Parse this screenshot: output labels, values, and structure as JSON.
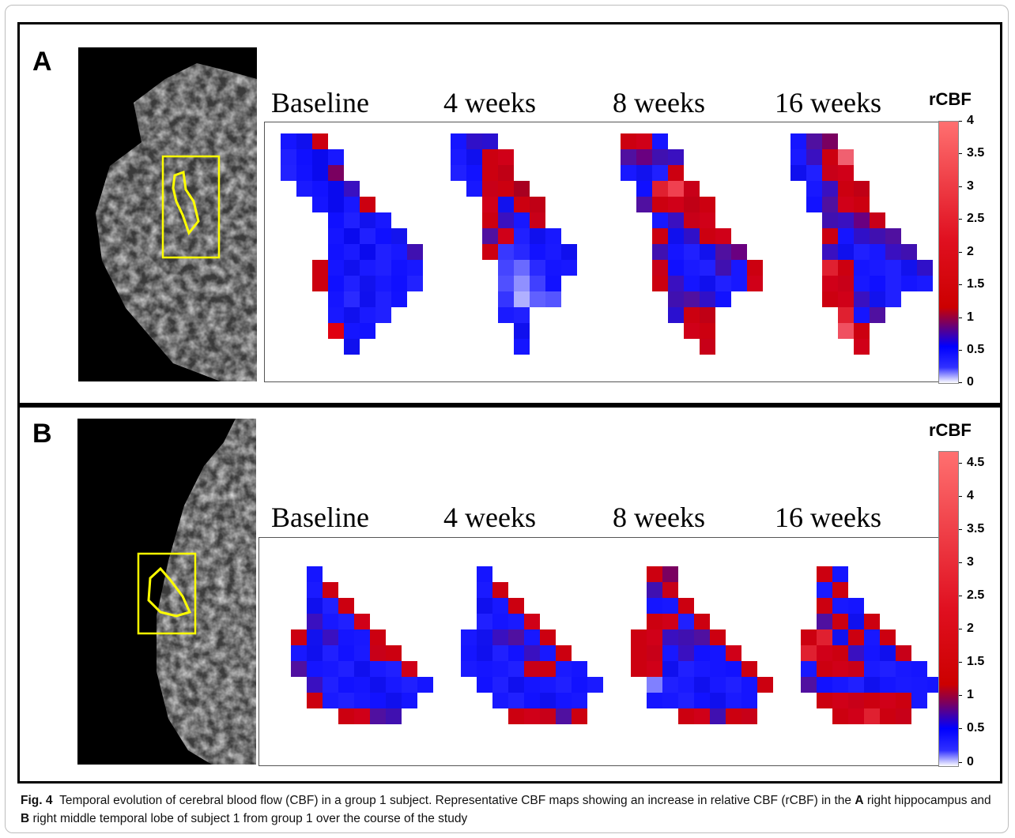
{
  "figure": {
    "panels": [
      {
        "letter": "A",
        "cb_title": "rCBF",
        "cb_ticks": [
          "4",
          "3.5",
          "3",
          "2.5",
          "2",
          "1.5",
          "1",
          "0.5",
          "0"
        ],
        "timepoints": [
          "Baseline",
          "4 weeks",
          "8 weeks",
          "16 weeks"
        ]
      },
      {
        "letter": "B",
        "cb_title": "rCBF",
        "cb_ticks": [
          "4.5",
          "4",
          "3.5",
          "3",
          "2.5",
          "2",
          "1.5",
          "1",
          "0.5",
          "0"
        ],
        "timepoints": [
          "Baseline",
          "4 weeks",
          "8 weeks",
          "16 weeks"
        ]
      }
    ],
    "caption": {
      "fig_label": "Fig. 4",
      "text1": "Temporal evolution of cerebral blood flow (CBF) in a group 1 subject. Representative CBF maps showing an increase in relative CBF (rCBF) in the ",
      "a_label": "A",
      "text2": " right hippocampus and ",
      "b_label": "B",
      "text3": " right middle temporal lobe of subject 1 from group 1 over the course of the study"
    },
    "colors": {
      "roi_outline": "#ffff00",
      "low": "#ffffff",
      "mid_blue": "#0000ff",
      "mid_red": "#cc0000",
      "high": "#ff7070"
    }
  }
}
